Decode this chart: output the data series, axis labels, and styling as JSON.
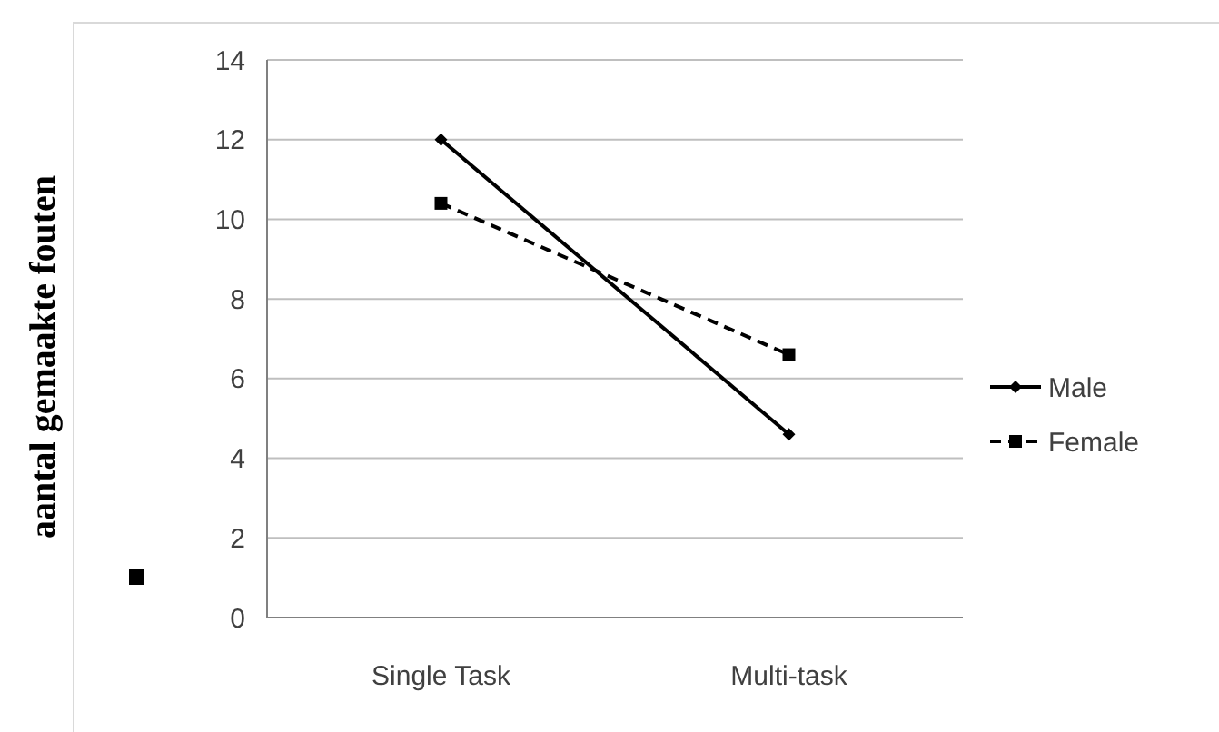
{
  "chart_data": {
    "type": "line",
    "ylabel": "aantal gemaakte fouten",
    "categories": [
      "Single Task",
      "Multi-task"
    ],
    "series": [
      {
        "name": "Male",
        "color": "#000000",
        "values": [
          12,
          4.6
        ],
        "line_style": "solid",
        "marker": "diamond"
      },
      {
        "name": "Female",
        "color": "#000000",
        "values": [
          10.4,
          6.6
        ],
        "line_style": "dashed",
        "marker": "square"
      }
    ],
    "ylim": [
      0,
      14
    ],
    "yticks": [
      0,
      2,
      4,
      6,
      8,
      10,
      12,
      14
    ],
    "grid": "y",
    "legend": "right"
  }
}
